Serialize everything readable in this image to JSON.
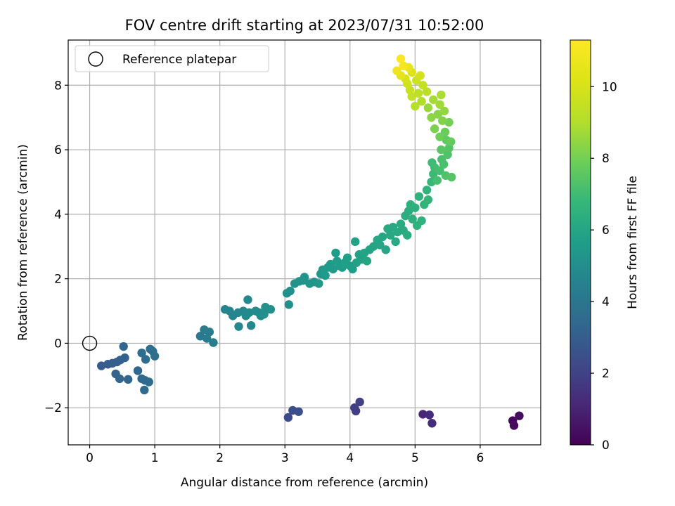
{
  "chart_data": {
    "type": "scatter",
    "title": "FOV centre drift starting at 2023/07/31 10:52:00",
    "xlabel": "Angular distance from reference (arcmin)",
    "ylabel": "Rotation from reference (arcmin)",
    "xlim": [
      -0.33,
      6.93
    ],
    "ylim": [
      -3.15,
      9.4
    ],
    "xticks": [
      0,
      1,
      2,
      3,
      4,
      5,
      6
    ],
    "yticks": [
      -2,
      0,
      2,
      4,
      6,
      8
    ],
    "grid": true,
    "legend": {
      "placement": "top-left",
      "entries": [
        "Reference platepar"
      ]
    },
    "reference_point": {
      "x": 0,
      "y": 0,
      "label": "Reference platepar"
    },
    "colorbar": {
      "label": "Hours from first FF file",
      "range": [
        0,
        11.3
      ],
      "ticks": [
        0,
        2,
        4,
        6,
        8,
        10
      ],
      "colormap": "viridis"
    },
    "series": [
      {
        "points": [
          {
            "x": 6.5,
            "y": -2.4,
            "c": 0.2
          },
          {
            "x": 6.52,
            "y": -2.55,
            "c": 0.3
          },
          {
            "x": 6.6,
            "y": -2.25,
            "c": 0.4
          },
          {
            "x": 5.12,
            "y": -2.2,
            "c": 1.1
          },
          {
            "x": 5.22,
            "y": -2.22,
            "c": 1.2
          },
          {
            "x": 5.26,
            "y": -2.48,
            "c": 1.3
          },
          {
            "x": 4.07,
            "y": -2.0,
            "c": 1.8
          },
          {
            "x": 4.09,
            "y": -2.1,
            "c": 1.9
          },
          {
            "x": 4.15,
            "y": -1.82,
            "c": 2.0
          },
          {
            "x": 3.05,
            "y": -2.3,
            "c": 2.3
          },
          {
            "x": 3.12,
            "y": -2.08,
            "c": 2.4
          },
          {
            "x": 3.21,
            "y": -2.12,
            "c": 2.5
          },
          {
            "x": 0.18,
            "y": -0.7,
            "c": 2.9
          },
          {
            "x": 0.28,
            "y": -0.65,
            "c": 3.0
          },
          {
            "x": 0.35,
            "y": -0.62,
            "c": 3.0
          },
          {
            "x": 0.42,
            "y": -0.58,
            "c": 3.1
          },
          {
            "x": 0.47,
            "y": -0.52,
            "c": 3.1
          },
          {
            "x": 0.54,
            "y": -0.45,
            "c": 3.2
          },
          {
            "x": 0.52,
            "y": -0.1,
            "c": 3.3
          },
          {
            "x": 0.4,
            "y": -0.95,
            "c": 3.2
          },
          {
            "x": 0.46,
            "y": -1.1,
            "c": 3.3
          },
          {
            "x": 0.59,
            "y": -1.12,
            "c": 3.3
          },
          {
            "x": 0.74,
            "y": -0.85,
            "c": 3.4
          },
          {
            "x": 0.8,
            "y": -1.1,
            "c": 3.4
          },
          {
            "x": 0.85,
            "y": -1.15,
            "c": 3.5
          },
          {
            "x": 0.91,
            "y": -1.2,
            "c": 3.5
          },
          {
            "x": 0.84,
            "y": -1.45,
            "c": 3.5
          },
          {
            "x": 0.8,
            "y": -0.3,
            "c": 3.6
          },
          {
            "x": 0.86,
            "y": -0.5,
            "c": 3.6
          },
          {
            "x": 0.93,
            "y": -0.18,
            "c": 3.7
          },
          {
            "x": 0.97,
            "y": -0.25,
            "c": 3.7
          },
          {
            "x": 1.0,
            "y": -0.4,
            "c": 3.7
          },
          {
            "x": 1.7,
            "y": 0.22,
            "c": 4.1
          },
          {
            "x": 1.76,
            "y": 0.42,
            "c": 4.2
          },
          {
            "x": 1.8,
            "y": 0.15,
            "c": 4.2
          },
          {
            "x": 1.84,
            "y": 0.35,
            "c": 4.3
          },
          {
            "x": 1.9,
            "y": 0.02,
            "c": 4.3
          },
          {
            "x": 2.08,
            "y": 1.05,
            "c": 4.6
          },
          {
            "x": 2.15,
            "y": 1.0,
            "c": 4.6
          },
          {
            "x": 2.2,
            "y": 0.85,
            "c": 4.6
          },
          {
            "x": 2.28,
            "y": 0.95,
            "c": 4.7
          },
          {
            "x": 2.29,
            "y": 0.52,
            "c": 4.7
          },
          {
            "x": 2.36,
            "y": 1.0,
            "c": 4.7
          },
          {
            "x": 2.4,
            "y": 0.85,
            "c": 4.8
          },
          {
            "x": 2.43,
            "y": 1.35,
            "c": 4.8
          },
          {
            "x": 2.45,
            "y": 0.95,
            "c": 4.8
          },
          {
            "x": 2.48,
            "y": 0.55,
            "c": 4.8
          },
          {
            "x": 2.55,
            "y": 1.0,
            "c": 4.9
          },
          {
            "x": 2.6,
            "y": 0.95,
            "c": 4.9
          },
          {
            "x": 2.63,
            "y": 0.85,
            "c": 4.9
          },
          {
            "x": 2.68,
            "y": 0.9,
            "c": 5.0
          },
          {
            "x": 2.7,
            "y": 1.12,
            "c": 5.0
          },
          {
            "x": 2.78,
            "y": 1.05,
            "c": 5.0
          },
          {
            "x": 3.03,
            "y": 1.55,
            "c": 5.1
          },
          {
            "x": 3.08,
            "y": 1.62,
            "c": 5.1
          },
          {
            "x": 3.06,
            "y": 1.2,
            "c": 5.1
          },
          {
            "x": 3.15,
            "y": 1.85,
            "c": 5.2
          },
          {
            "x": 3.22,
            "y": 1.92,
            "c": 5.2
          },
          {
            "x": 3.28,
            "y": 1.95,
            "c": 5.2
          },
          {
            "x": 3.3,
            "y": 2.05,
            "c": 5.3
          },
          {
            "x": 3.38,
            "y": 1.85,
            "c": 5.3
          },
          {
            "x": 3.45,
            "y": 1.9,
            "c": 5.3
          },
          {
            "x": 3.52,
            "y": 1.85,
            "c": 5.4
          },
          {
            "x": 3.55,
            "y": 2.15,
            "c": 5.4
          },
          {
            "x": 3.58,
            "y": 2.28,
            "c": 5.4
          },
          {
            "x": 3.62,
            "y": 2.1,
            "c": 5.5
          },
          {
            "x": 3.66,
            "y": 2.35,
            "c": 5.5
          },
          {
            "x": 3.7,
            "y": 2.45,
            "c": 5.5
          },
          {
            "x": 3.74,
            "y": 2.3,
            "c": 5.5
          },
          {
            "x": 3.78,
            "y": 2.8,
            "c": 5.6
          },
          {
            "x": 3.8,
            "y": 2.55,
            "c": 5.6
          },
          {
            "x": 3.84,
            "y": 2.4,
            "c": 5.6
          },
          {
            "x": 3.88,
            "y": 2.35,
            "c": 5.6
          },
          {
            "x": 3.92,
            "y": 2.5,
            "c": 5.7
          },
          {
            "x": 3.96,
            "y": 2.65,
            "c": 5.7
          },
          {
            "x": 4.0,
            "y": 2.4,
            "c": 5.7
          },
          {
            "x": 4.04,
            "y": 2.3,
            "c": 5.7
          },
          {
            "x": 4.08,
            "y": 3.15,
            "c": 5.8
          },
          {
            "x": 4.1,
            "y": 2.5,
            "c": 5.8
          },
          {
            "x": 4.14,
            "y": 2.75,
            "c": 5.8
          },
          {
            "x": 4.18,
            "y": 2.6,
            "c": 5.8
          },
          {
            "x": 4.22,
            "y": 2.8,
            "c": 5.9
          },
          {
            "x": 4.26,
            "y": 2.55,
            "c": 5.9
          },
          {
            "x": 4.3,
            "y": 2.9,
            "c": 5.9
          },
          {
            "x": 4.36,
            "y": 3.0,
            "c": 5.9
          },
          {
            "x": 4.42,
            "y": 3.2,
            "c": 6.0
          },
          {
            "x": 4.46,
            "y": 3.05,
            "c": 6.0
          },
          {
            "x": 4.5,
            "y": 3.3,
            "c": 6.0
          },
          {
            "x": 4.55,
            "y": 2.9,
            "c": 6.0
          },
          {
            "x": 4.58,
            "y": 3.55,
            "c": 6.1
          },
          {
            "x": 4.62,
            "y": 3.35,
            "c": 6.1
          },
          {
            "x": 4.66,
            "y": 3.6,
            "c": 6.1
          },
          {
            "x": 4.7,
            "y": 3.15,
            "c": 6.1
          },
          {
            "x": 4.73,
            "y": 3.45,
            "c": 6.2
          },
          {
            "x": 4.78,
            "y": 3.7,
            "c": 6.2
          },
          {
            "x": 4.82,
            "y": 3.5,
            "c": 6.2
          },
          {
            "x": 4.85,
            "y": 3.95,
            "c": 6.3
          },
          {
            "x": 4.88,
            "y": 3.35,
            "c": 6.3
          },
          {
            "x": 4.9,
            "y": 4.1,
            "c": 6.3
          },
          {
            "x": 4.93,
            "y": 4.3,
            "c": 6.4
          },
          {
            "x": 4.96,
            "y": 3.85,
            "c": 6.4
          },
          {
            "x": 5.0,
            "y": 4.2,
            "c": 6.4
          },
          {
            "x": 5.03,
            "y": 3.65,
            "c": 6.5
          },
          {
            "x": 5.06,
            "y": 4.55,
            "c": 6.5
          },
          {
            "x": 5.1,
            "y": 3.8,
            "c": 6.5
          },
          {
            "x": 5.14,
            "y": 4.3,
            "c": 6.6
          },
          {
            "x": 5.18,
            "y": 4.75,
            "c": 6.6
          },
          {
            "x": 5.2,
            "y": 4.45,
            "c": 6.7
          },
          {
            "x": 5.25,
            "y": 5.0,
            "c": 6.8
          },
          {
            "x": 5.28,
            "y": 5.25,
            "c": 6.9
          },
          {
            "x": 5.3,
            "y": 5.45,
            "c": 7.0
          },
          {
            "x": 5.26,
            "y": 5.6,
            "c": 7.0
          },
          {
            "x": 5.34,
            "y": 5.05,
            "c": 7.1
          },
          {
            "x": 5.38,
            "y": 5.35,
            "c": 7.1
          },
          {
            "x": 5.41,
            "y": 5.7,
            "c": 7.2
          },
          {
            "x": 5.44,
            "y": 5.55,
            "c": 7.2
          },
          {
            "x": 5.47,
            "y": 5.2,
            "c": 7.3
          },
          {
            "x": 5.5,
            "y": 5.85,
            "c": 7.3
          },
          {
            "x": 5.52,
            "y": 6.05,
            "c": 7.4
          },
          {
            "x": 5.56,
            "y": 5.15,
            "c": 7.4
          },
          {
            "x": 5.4,
            "y": 6.0,
            "c": 7.5
          },
          {
            "x": 5.48,
            "y": 6.3,
            "c": 7.6
          },
          {
            "x": 5.55,
            "y": 6.25,
            "c": 7.7
          },
          {
            "x": 5.46,
            "y": 6.55,
            "c": 7.8
          },
          {
            "x": 5.38,
            "y": 6.4,
            "c": 7.9
          },
          {
            "x": 5.52,
            "y": 6.85,
            "c": 8.0
          },
          {
            "x": 5.3,
            "y": 6.65,
            "c": 8.1
          },
          {
            "x": 5.42,
            "y": 6.9,
            "c": 8.2
          },
          {
            "x": 5.35,
            "y": 7.1,
            "c": 8.3
          },
          {
            "x": 5.25,
            "y": 7.0,
            "c": 8.4
          },
          {
            "x": 5.45,
            "y": 7.2,
            "c": 8.5
          },
          {
            "x": 5.2,
            "y": 7.3,
            "c": 8.6
          },
          {
            "x": 5.38,
            "y": 7.4,
            "c": 8.7
          },
          {
            "x": 5.28,
            "y": 7.55,
            "c": 8.8
          },
          {
            "x": 5.4,
            "y": 7.7,
            "c": 8.9
          },
          {
            "x": 5.1,
            "y": 7.5,
            "c": 9.0
          },
          {
            "x": 5.0,
            "y": 7.35,
            "c": 9.1
          },
          {
            "x": 5.18,
            "y": 7.8,
            "c": 9.2
          },
          {
            "x": 5.05,
            "y": 7.75,
            "c": 9.3
          },
          {
            "x": 4.95,
            "y": 7.65,
            "c": 9.4
          },
          {
            "x": 5.12,
            "y": 8.0,
            "c": 9.5
          },
          {
            "x": 4.92,
            "y": 7.85,
            "c": 9.6
          },
          {
            "x": 5.02,
            "y": 8.15,
            "c": 9.7
          },
          {
            "x": 4.88,
            "y": 8.05,
            "c": 9.8
          },
          {
            "x": 5.08,
            "y": 8.3,
            "c": 9.9
          },
          {
            "x": 4.85,
            "y": 8.2,
            "c": 10.0
          },
          {
            "x": 4.95,
            "y": 8.4,
            "c": 10.2
          },
          {
            "x": 4.78,
            "y": 8.3,
            "c": 10.4
          },
          {
            "x": 4.9,
            "y": 8.55,
            "c": 10.6
          },
          {
            "x": 4.72,
            "y": 8.45,
            "c": 10.8
          },
          {
            "x": 4.82,
            "y": 8.6,
            "c": 11.0
          },
          {
            "x": 4.78,
            "y": 8.82,
            "c": 11.2
          }
        ]
      }
    ]
  }
}
